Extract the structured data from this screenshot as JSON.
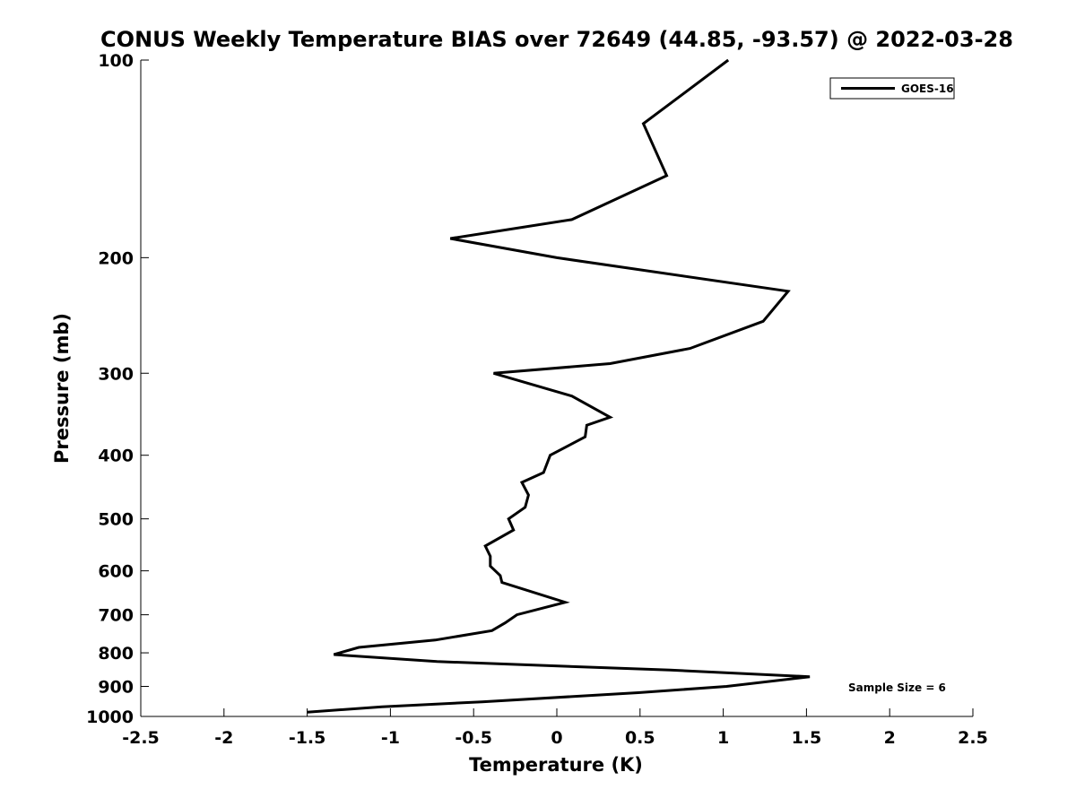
{
  "chart_data": {
    "type": "line",
    "title": "CONUS Weekly Temperature BIAS over 72649 (44.85, -93.57) @ 2022-03-28",
    "xlabel": "Temperature (K)",
    "ylabel": "Pressure (mb)",
    "xlim": [
      -2.5,
      2.5
    ],
    "ylim": [
      100,
      1000
    ],
    "y_scale": "log",
    "y_reversed": true,
    "xticks": [
      "-2.5",
      "-2",
      "-1.5",
      "-1",
      "-0.5",
      "0",
      "0.5",
      "1",
      "1.5",
      "2",
      "2.5"
    ],
    "yticks": [
      "100",
      "200",
      "300",
      "400",
      "500",
      "600",
      "700",
      "800",
      "900",
      "1000"
    ],
    "grid": false,
    "legend_position": "top-right",
    "series": [
      {
        "name": "GOES-16",
        "color": "#000000",
        "points": [
          {
            "x": 1.03,
            "y": 100
          },
          {
            "x": 0.52,
            "y": 125
          },
          {
            "x": 0.66,
            "y": 150
          },
          {
            "x": 0.09,
            "y": 175
          },
          {
            "x": -0.64,
            "y": 187
          },
          {
            "x": 0.0,
            "y": 200
          },
          {
            "x": 1.39,
            "y": 225
          },
          {
            "x": 1.24,
            "y": 250
          },
          {
            "x": 0.8,
            "y": 275
          },
          {
            "x": 0.32,
            "y": 290
          },
          {
            "x": -0.38,
            "y": 300
          },
          {
            "x": 0.09,
            "y": 325
          },
          {
            "x": 0.32,
            "y": 350
          },
          {
            "x": 0.18,
            "y": 360
          },
          {
            "x": 0.17,
            "y": 375
          },
          {
            "x": -0.04,
            "y": 400
          },
          {
            "x": -0.08,
            "y": 425
          },
          {
            "x": -0.21,
            "y": 440
          },
          {
            "x": -0.17,
            "y": 460
          },
          {
            "x": -0.19,
            "y": 480
          },
          {
            "x": -0.29,
            "y": 500
          },
          {
            "x": -0.26,
            "y": 520
          },
          {
            "x": -0.43,
            "y": 550
          },
          {
            "x": -0.4,
            "y": 570
          },
          {
            "x": -0.4,
            "y": 590
          },
          {
            "x": -0.34,
            "y": 610
          },
          {
            "x": -0.33,
            "y": 625
          },
          {
            "x": 0.05,
            "y": 670
          },
          {
            "x": -0.24,
            "y": 700
          },
          {
            "x": -0.31,
            "y": 720
          },
          {
            "x": -0.39,
            "y": 740
          },
          {
            "x": -0.73,
            "y": 765
          },
          {
            "x": -1.19,
            "y": 785
          },
          {
            "x": -1.34,
            "y": 805
          },
          {
            "x": -0.72,
            "y": 825
          },
          {
            "x": 0.68,
            "y": 850
          },
          {
            "x": 1.52,
            "y": 870
          },
          {
            "x": 1.02,
            "y": 900
          },
          {
            "x": 0.49,
            "y": 920
          },
          {
            "x": -0.45,
            "y": 950
          },
          {
            "x": -1.05,
            "y": 967
          },
          {
            "x": -1.5,
            "y": 985
          }
        ]
      }
    ],
    "annotation": "Sample Size = 6"
  }
}
